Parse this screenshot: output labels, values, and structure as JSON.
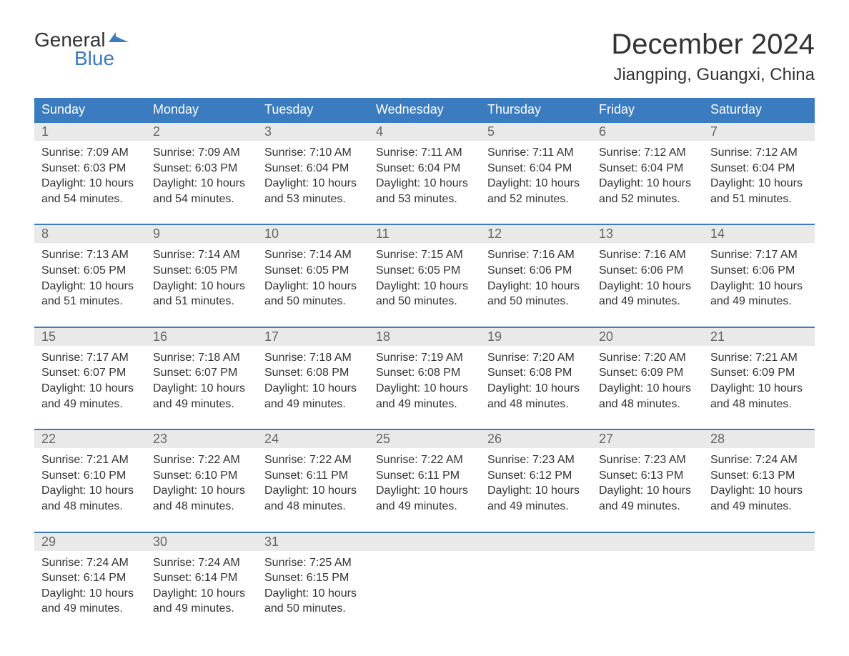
{
  "logo": {
    "line1": "General",
    "line2": "Blue",
    "brand_color": "#3b7bbf"
  },
  "title": "December 2024",
  "location": "Jiangping, Guangxi, China",
  "columns": [
    "Sunday",
    "Monday",
    "Tuesday",
    "Wednesday",
    "Thursday",
    "Friday",
    "Saturday"
  ],
  "header_bg": "#3b7bbf",
  "header_fg": "#ffffff",
  "daynum_bg": "#e9e9e9",
  "week_border": "#3b7bbf",
  "text_color": "#333333",
  "fontsize_title": 40,
  "fontsize_location": 24,
  "fontsize_header": 18,
  "fontsize_body": 16,
  "weeks": [
    [
      {
        "n": "1",
        "sunrise": "7:09 AM",
        "sunset": "6:03 PM",
        "dh": "10",
        "dm": "54"
      },
      {
        "n": "2",
        "sunrise": "7:09 AM",
        "sunset": "6:03 PM",
        "dh": "10",
        "dm": "54"
      },
      {
        "n": "3",
        "sunrise": "7:10 AM",
        "sunset": "6:04 PM",
        "dh": "10",
        "dm": "53"
      },
      {
        "n": "4",
        "sunrise": "7:11 AM",
        "sunset": "6:04 PM",
        "dh": "10",
        "dm": "53"
      },
      {
        "n": "5",
        "sunrise": "7:11 AM",
        "sunset": "6:04 PM",
        "dh": "10",
        "dm": "52"
      },
      {
        "n": "6",
        "sunrise": "7:12 AM",
        "sunset": "6:04 PM",
        "dh": "10",
        "dm": "52"
      },
      {
        "n": "7",
        "sunrise": "7:12 AM",
        "sunset": "6:04 PM",
        "dh": "10",
        "dm": "51"
      }
    ],
    [
      {
        "n": "8",
        "sunrise": "7:13 AM",
        "sunset": "6:05 PM",
        "dh": "10",
        "dm": "51"
      },
      {
        "n": "9",
        "sunrise": "7:14 AM",
        "sunset": "6:05 PM",
        "dh": "10",
        "dm": "51"
      },
      {
        "n": "10",
        "sunrise": "7:14 AM",
        "sunset": "6:05 PM",
        "dh": "10",
        "dm": "50"
      },
      {
        "n": "11",
        "sunrise": "7:15 AM",
        "sunset": "6:05 PM",
        "dh": "10",
        "dm": "50"
      },
      {
        "n": "12",
        "sunrise": "7:16 AM",
        "sunset": "6:06 PM",
        "dh": "10",
        "dm": "50"
      },
      {
        "n": "13",
        "sunrise": "7:16 AM",
        "sunset": "6:06 PM",
        "dh": "10",
        "dm": "49"
      },
      {
        "n": "14",
        "sunrise": "7:17 AM",
        "sunset": "6:06 PM",
        "dh": "10",
        "dm": "49"
      }
    ],
    [
      {
        "n": "15",
        "sunrise": "7:17 AM",
        "sunset": "6:07 PM",
        "dh": "10",
        "dm": "49"
      },
      {
        "n": "16",
        "sunrise": "7:18 AM",
        "sunset": "6:07 PM",
        "dh": "10",
        "dm": "49"
      },
      {
        "n": "17",
        "sunrise": "7:18 AM",
        "sunset": "6:08 PM",
        "dh": "10",
        "dm": "49"
      },
      {
        "n": "18",
        "sunrise": "7:19 AM",
        "sunset": "6:08 PM",
        "dh": "10",
        "dm": "49"
      },
      {
        "n": "19",
        "sunrise": "7:20 AM",
        "sunset": "6:08 PM",
        "dh": "10",
        "dm": "48"
      },
      {
        "n": "20",
        "sunrise": "7:20 AM",
        "sunset": "6:09 PM",
        "dh": "10",
        "dm": "48"
      },
      {
        "n": "21",
        "sunrise": "7:21 AM",
        "sunset": "6:09 PM",
        "dh": "10",
        "dm": "48"
      }
    ],
    [
      {
        "n": "22",
        "sunrise": "7:21 AM",
        "sunset": "6:10 PM",
        "dh": "10",
        "dm": "48"
      },
      {
        "n": "23",
        "sunrise": "7:22 AM",
        "sunset": "6:10 PM",
        "dh": "10",
        "dm": "48"
      },
      {
        "n": "24",
        "sunrise": "7:22 AM",
        "sunset": "6:11 PM",
        "dh": "10",
        "dm": "48"
      },
      {
        "n": "25",
        "sunrise": "7:22 AM",
        "sunset": "6:11 PM",
        "dh": "10",
        "dm": "49"
      },
      {
        "n": "26",
        "sunrise": "7:23 AM",
        "sunset": "6:12 PM",
        "dh": "10",
        "dm": "49"
      },
      {
        "n": "27",
        "sunrise": "7:23 AM",
        "sunset": "6:13 PM",
        "dh": "10",
        "dm": "49"
      },
      {
        "n": "28",
        "sunrise": "7:24 AM",
        "sunset": "6:13 PM",
        "dh": "10",
        "dm": "49"
      }
    ],
    [
      {
        "n": "29",
        "sunrise": "7:24 AM",
        "sunset": "6:14 PM",
        "dh": "10",
        "dm": "49"
      },
      {
        "n": "30",
        "sunrise": "7:24 AM",
        "sunset": "6:14 PM",
        "dh": "10",
        "dm": "49"
      },
      {
        "n": "31",
        "sunrise": "7:25 AM",
        "sunset": "6:15 PM",
        "dh": "10",
        "dm": "50"
      },
      null,
      null,
      null,
      null
    ]
  ],
  "labels": {
    "sunrise": "Sunrise: ",
    "sunset": "Sunset: ",
    "daylight_1": "Daylight: ",
    "daylight_2": " hours",
    "daylight_3": "and ",
    "daylight_4": " minutes."
  }
}
